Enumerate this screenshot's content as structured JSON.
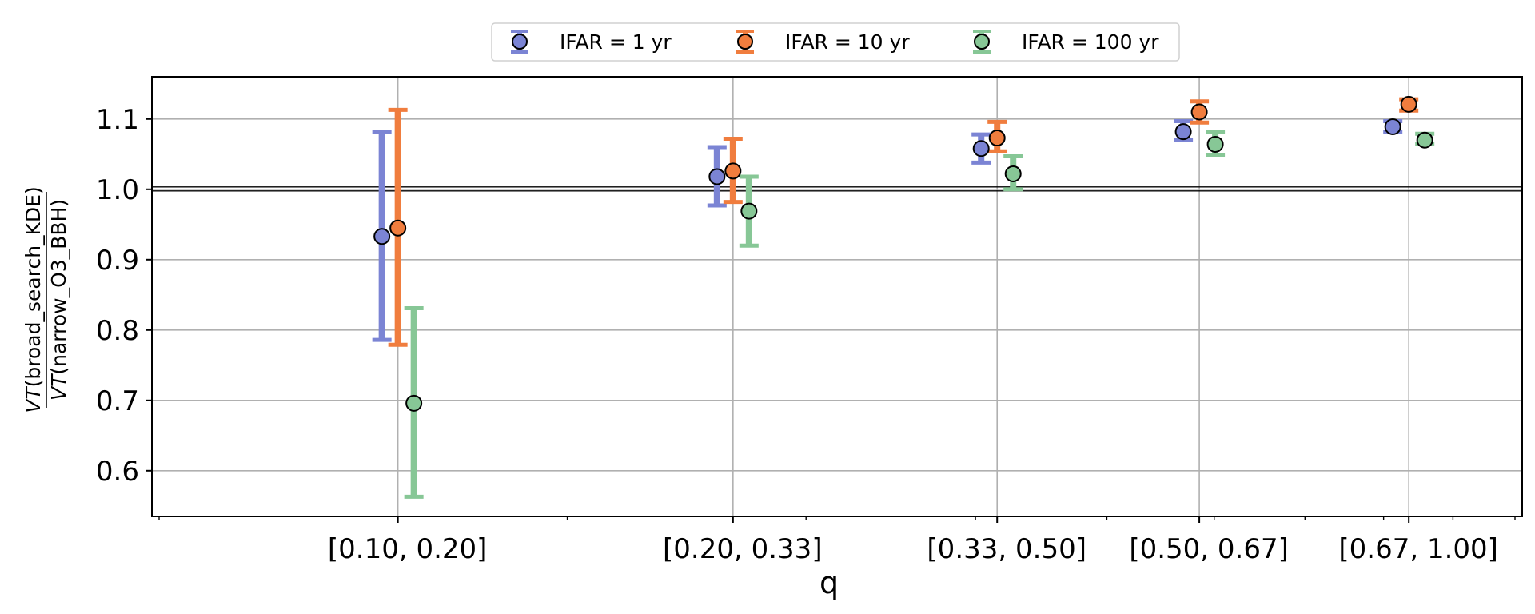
{
  "chart_data": {
    "type": "scatter",
    "title": "",
    "xlabel": "q",
    "ylabel": {
      "numerator": "VT(broad_search_KDE)",
      "denominator": "VT(narrow_O3_BBH)"
    },
    "categories": [
      "[0.10, 0.20]",
      "[0.20, 0.33]",
      "[0.33, 0.50]",
      "[0.50, 0.67]",
      "[0.67, 1.00]"
    ],
    "category_positions": [
      0.15,
      0.265,
      0.415,
      0.585,
      0.835
    ],
    "xscale": "log",
    "xlim": [
      0.1,
      1.0
    ],
    "ylim": [
      0.535,
      1.16
    ],
    "yticks": [
      0.6,
      0.7,
      0.8,
      0.9,
      1.0,
      1.1
    ],
    "ytick_labels": [
      "0.6",
      "0.7",
      "0.8",
      "0.9",
      "1.0",
      "1.1"
    ],
    "reference_line": 1.0,
    "grid": true,
    "legend_position": "top-center",
    "series": [
      {
        "name": "IFAR = 1 yr",
        "color": "#7b84d4",
        "values": [
          0.933,
          1.018,
          1.058,
          1.082,
          1.089
        ],
        "lower": [
          0.786,
          0.977,
          1.038,
          1.07,
          1.082
        ],
        "upper": [
          1.082,
          1.06,
          1.078,
          1.097,
          1.097
        ]
      },
      {
        "name": "IFAR = 10 yr",
        "color": "#f07d3e",
        "values": [
          0.945,
          1.026,
          1.073,
          1.11,
          1.121
        ],
        "lower": [
          0.779,
          0.982,
          1.054,
          1.095,
          1.112
        ],
        "upper": [
          1.113,
          1.072,
          1.096,
          1.125,
          1.128
        ]
      },
      {
        "name": "IFAR = 100 yr",
        "color": "#87c796",
        "values": [
          0.696,
          0.969,
          1.022,
          1.064,
          1.07
        ],
        "lower": [
          0.563,
          0.92,
          1.0,
          1.049,
          1.064
        ],
        "upper": [
          0.831,
          1.018,
          1.047,
          1.081,
          1.079
        ]
      }
    ]
  }
}
